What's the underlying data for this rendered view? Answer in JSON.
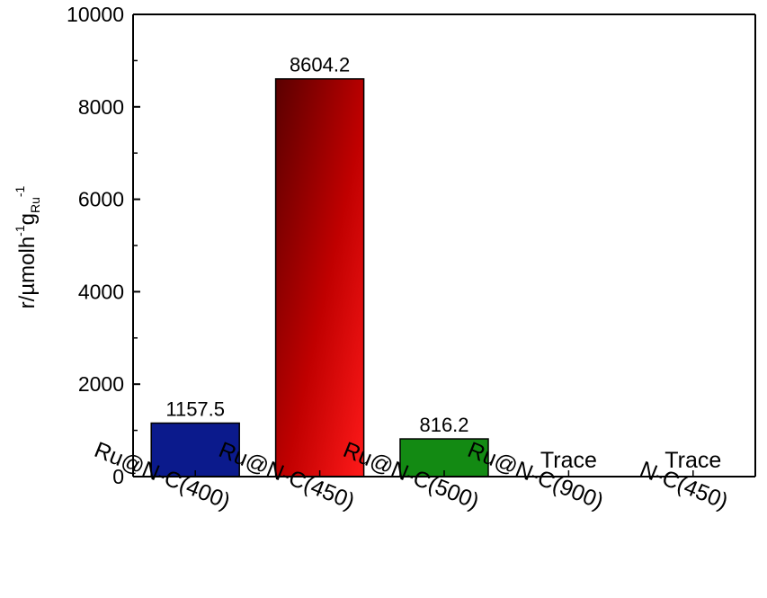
{
  "chart_data": {
    "type": "bar",
    "categories": [
      "Ru@N-C(400)",
      "Ru@N-C(450)",
      "Ru@N-C(500)",
      "Ru@N-C(900)",
      "N-C(450)"
    ],
    "values": [
      1157.5,
      8604.2,
      816.2,
      0,
      0
    ],
    "data_labels": [
      "1157.5",
      "8604.2",
      "816.2",
      "Trace",
      "Trace"
    ],
    "colors": [
      "#0b1a8c",
      "#cc0000",
      "#138a13",
      "#ffffff",
      "#ffffff"
    ],
    "ylabel": {
      "main": "r/µmolh",
      "sup1": "-1",
      "g": "g",
      "sub": "Ru",
      "sup2": "-1"
    },
    "ylim": [
      0,
      10000
    ],
    "yticks": [
      0,
      2000,
      4000,
      6000,
      8000,
      10000
    ],
    "grid": false,
    "legend": "none"
  }
}
